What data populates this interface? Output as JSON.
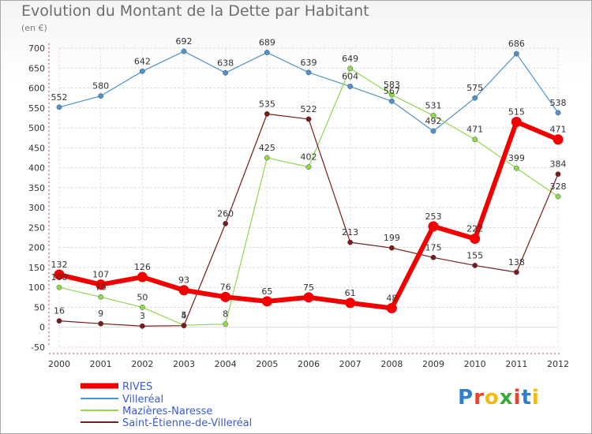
{
  "header": {
    "title": "Evolution du Montant de la Dette par Habitant",
    "unit": "(en €)"
  },
  "logo": {
    "text": "Proxiti",
    "colors": [
      "#2f7fd1",
      "#e8442c",
      "#f2b90f",
      "#3aa93a",
      "#e8442c",
      "#2f7fd1",
      "#f2b90f"
    ]
  },
  "chart_data": {
    "type": "line",
    "title": "Evolution du Montant de la Dette par Habitant",
    "ylabel": "(en €)",
    "xlabel": "",
    "x": [
      "2000",
      "2001",
      "2002",
      "2003",
      "2004",
      "2005",
      "2006",
      "2007",
      "2008",
      "2009",
      "2010",
      "2011",
      "2012"
    ],
    "ylim": [
      -50,
      700
    ],
    "yticks": [
      -50,
      0,
      50,
      100,
      150,
      200,
      250,
      300,
      350,
      400,
      450,
      500,
      550,
      600,
      650,
      700
    ],
    "grid": true,
    "legend": "bottom-left",
    "series": [
      {
        "name": "RIVES",
        "color": "#f20000",
        "values": [
          132,
          107,
          126,
          93,
          76,
          65,
          75,
          61,
          48,
          253,
          222,
          515,
          471
        ],
        "labels": [
          "132",
          "107",
          "126",
          "93",
          "76",
          "65",
          "75",
          "61",
          "48",
          "253",
          "222",
          "515",
          "471"
        ]
      },
      {
        "name": "Villeréal",
        "color": "#4f93cc",
        "values": [
          552,
          580,
          642,
          692,
          638,
          689,
          639,
          604,
          567,
          492,
          575,
          686,
          538
        ],
        "labels": [
          "552",
          "580",
          "642",
          "692",
          "638",
          "689",
          "639",
          "604",
          "567",
          "492",
          "575",
          "686",
          "538"
        ]
      },
      {
        "name": "Mazières-Naresse",
        "color": "#8fd94a",
        "values": [
          100,
          76,
          50,
          5,
          8,
          425,
          402,
          649,
          583,
          531,
          471,
          399,
          328
        ],
        "labels": [
          "100",
          "76",
          "50",
          "5",
          "8",
          "425",
          "402",
          "649",
          "583",
          "531",
          "471",
          "399",
          "328"
        ]
      },
      {
        "name": "Saint-Étienne-de-Villeréal",
        "color": "#7a1a1a",
        "values": [
          16,
          9,
          3,
          4,
          260,
          535,
          522,
          213,
          199,
          175,
          155,
          138,
          384
        ],
        "labels": [
          "16",
          "9",
          "3",
          "4",
          "260",
          "535",
          "522",
          "213",
          "199",
          "175",
          "155",
          "138",
          "384"
        ]
      }
    ]
  }
}
